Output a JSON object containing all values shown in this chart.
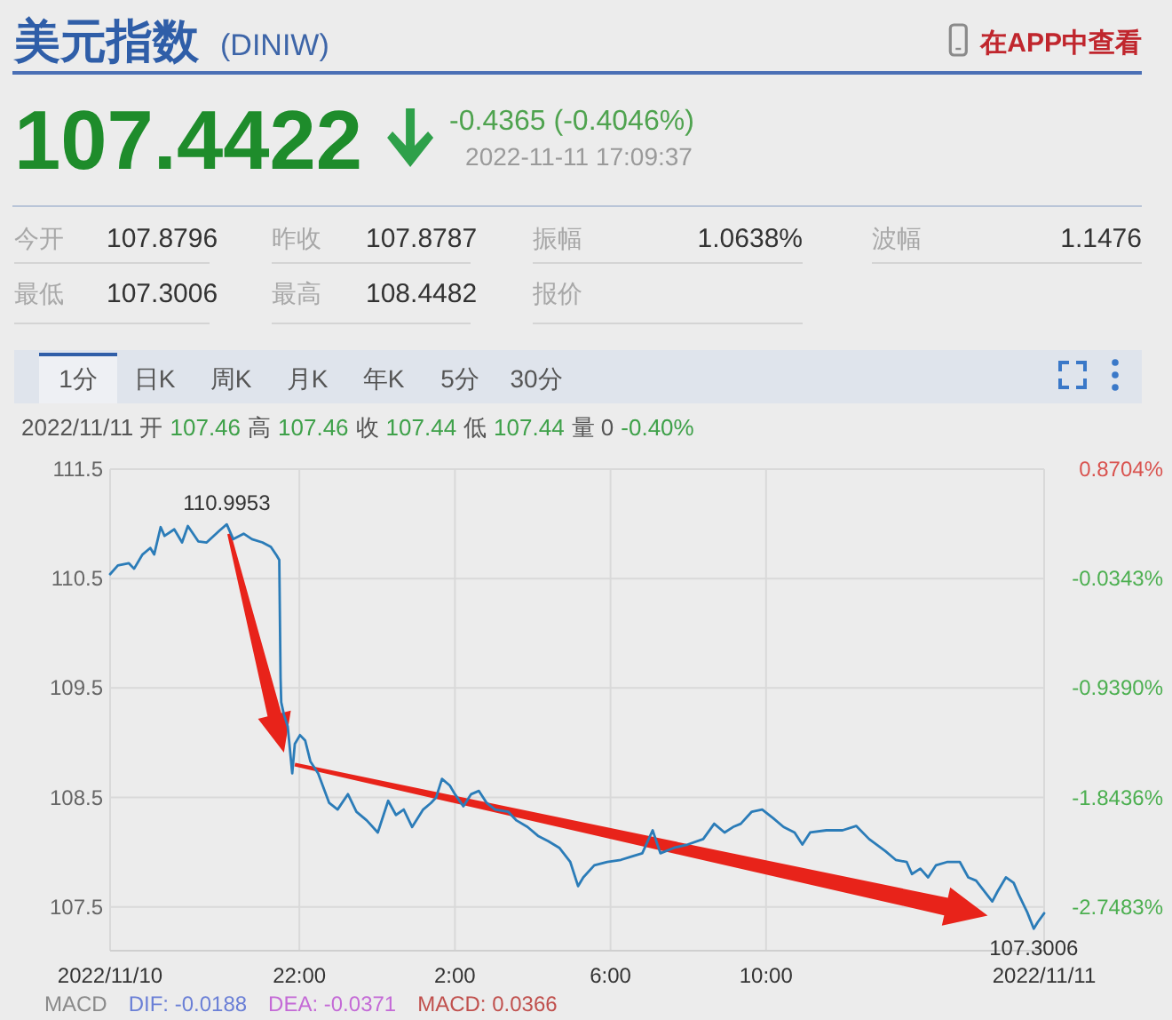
{
  "chart_data": [
    {
      "type": "other",
      "title": "美元指数",
      "subtitle": "(DINIW)",
      "annotations": [
        "在APP中查看",
        "107.4422",
        "-0.4365 (-0.4046%)",
        "2022-11-11 17:09:37",
        "今开",
        "107.8796",
        "昨收",
        "107.8787",
        "振幅",
        "1.0638%",
        "波幅",
        "1.1476",
        "最低",
        "107.3006",
        "最高",
        "108.4482",
        "报价",
        "1分",
        "日K",
        "周K",
        "月K",
        "年K",
        "5分",
        "30分"
      ]
    },
    {
      "type": "line",
      "color": "#2b7cb8",
      "x": [
        "2022-11-10T17:08",
        "2022-11-10T17:20",
        "2022-11-10T17:37",
        "2022-11-10T17:45",
        "2022-11-10T17:58",
        "2022-11-10T18:10",
        "2022-11-10T18:16",
        "2022-11-10T18:26",
        "2022-11-10T18:32",
        "2022-11-10T18:47",
        "2022-11-10T18:59",
        "2022-11-10T19:08",
        "2022-11-10T19:24",
        "2022-11-10T19:37",
        "2022-11-10T19:57",
        "2022-11-10T20:08",
        "2022-11-10T20:18",
        "2022-11-10T20:34",
        "2022-11-10T20:47",
        "2022-11-10T21:03",
        "2022-11-10T21:16",
        "2022-11-10T21:25",
        "2022-11-10T21:29",
        "2022-11-10T21:31",
        "2022-11-10T21:32",
        "2022-11-10T21:36",
        "2022-11-10T21:42",
        "2022-11-10T21:49",
        "2022-11-10T21:53",
        "2022-11-10T22:01",
        "2022-11-10T22:09",
        "2022-11-10T22:17",
        "2022-11-10T22:29",
        "2022-11-10T22:46",
        "2022-11-10T22:59",
        "2022-11-10T23:15",
        "2022-11-10T23:28",
        "2022-11-10T23:44",
        "2022-11-11T00:01",
        "2022-11-11T00:17",
        "2022-11-11T00:29",
        "2022-11-11T00:41",
        "2022-11-11T00:54",
        "2022-11-11T01:11",
        "2022-11-11T01:23",
        "2022-11-11T01:31",
        "2022-11-11T01:40",
        "2022-11-11T01:52",
        "2022-11-11T02:00",
        "2022-11-11T02:13",
        "2022-11-11T02:25",
        "2022-11-11T02:37",
        "2022-11-11T02:49",
        "2022-11-11T03:02",
        "2022-11-11T03:22",
        "2022-11-11T03:35",
        "2022-11-11T03:52",
        "2022-11-11T04:08",
        "2022-11-11T04:24",
        "2022-11-11T04:41",
        "2022-11-11T04:58",
        "2022-11-11T05:10",
        "2022-11-11T05:18",
        "2022-11-11T05:35",
        "2022-11-11T05:55",
        "2022-11-11T06:16",
        "2022-11-11T06:32",
        "2022-11-11T06:49",
        "2022-11-11T07:05",
        "2022-11-11T07:17",
        "2022-11-11T07:38",
        "2022-11-11T07:59",
        "2022-11-11T08:23",
        "2022-11-11T08:40",
        "2022-11-11T08:56",
        "2022-11-11T09:09",
        "2022-11-11T09:21",
        "2022-11-11T09:38",
        "2022-11-11T09:54",
        "2022-11-11T10:11",
        "2022-11-11T10:27",
        "2022-11-11T10:44",
        "2022-11-11T10:56",
        "2022-11-11T11:08",
        "2022-11-11T11:33",
        "2022-11-11T11:58",
        "2022-11-11T12:19",
        "2022-11-11T12:39",
        "2022-11-11T13:04",
        "2022-11-11T13:20",
        "2022-11-11T13:37",
        "2022-11-11T13:45",
        "2022-11-11T13:58",
        "2022-11-11T14:10",
        "2022-11-11T14:22",
        "2022-11-11T14:39",
        "2022-11-11T14:59",
        "2022-11-11T15:12",
        "2022-11-11T15:24",
        "2022-11-11T15:41",
        "2022-11-11T15:49",
        "2022-11-11T15:57",
        "2022-11-11T16:10",
        "2022-11-11T16:22",
        "2022-11-11T16:30",
        "2022-11-11T16:43",
        "2022-11-11T16:53",
        "2022-11-11T16:59",
        "2022-11-11T17:09"
      ],
      "values": [
        110.54,
        110.62,
        110.64,
        110.59,
        110.72,
        110.78,
        110.72,
        110.97,
        110.89,
        110.95,
        110.83,
        110.98,
        110.84,
        110.83,
        110.94,
        110.9953,
        110.86,
        110.91,
        110.86,
        110.83,
        110.79,
        110.71,
        110.67,
        109.59,
        109.37,
        109.26,
        109.15,
        108.72,
        108.99,
        109.07,
        109.02,
        108.83,
        108.72,
        108.45,
        108.39,
        108.53,
        108.37,
        108.29,
        108.18,
        108.47,
        108.34,
        108.39,
        108.23,
        108.39,
        108.45,
        108.5,
        108.67,
        108.61,
        108.53,
        108.42,
        108.53,
        108.56,
        108.45,
        108.39,
        108.37,
        108.29,
        108.23,
        108.15,
        108.1,
        108.04,
        107.91,
        107.69,
        107.77,
        107.88,
        107.91,
        107.93,
        107.96,
        107.99,
        108.2,
        107.99,
        108.04,
        108.07,
        108.12,
        108.26,
        108.18,
        108.23,
        108.26,
        108.37,
        108.39,
        108.31,
        108.23,
        108.18,
        108.07,
        108.18,
        108.2,
        108.2,
        108.24,
        108.12,
        108.01,
        107.93,
        107.91,
        107.8,
        107.85,
        107.77,
        107.88,
        107.91,
        107.91,
        107.77,
        107.74,
        107.61,
        107.55,
        107.64,
        107.77,
        107.72,
        107.61,
        107.45,
        107.3006,
        107.36,
        107.4422
      ],
      "xlim": [
        "2022-11-10T17:08",
        "2022-11-11T17:09"
      ],
      "xticks": [
        {
          "value": "2022-11-10T17:08",
          "label": "2022/11/10"
        },
        {
          "value": "2022-11-10T22:00",
          "label": "22:00"
        },
        {
          "value": "2022-11-11T02:00",
          "label": "2:00"
        },
        {
          "value": "2022-11-11T06:00",
          "label": "6:00"
        },
        {
          "value": "2022-11-11T10:00",
          "label": "10:00"
        },
        {
          "value": "2022-11-11T17:09",
          "label": "2022/11/11"
        }
      ],
      "ylim": [
        107.1,
        111.5
      ],
      "yticks": [
        107.5,
        108.5,
        109.5,
        110.5,
        111.5
      ],
      "y2lim": [
        -3.1101,
        0.8704
      ],
      "y2ticks": [
        {
          "value": -2.7483,
          "label": "-2.7483%"
        },
        {
          "value": -1.8436,
          "label": "-1.8436%"
        },
        {
          "value": -0.939,
          "label": "-0.9390%"
        },
        {
          "value": -0.0343,
          "label": "-0.0343%"
        },
        {
          "value": 0.8704,
          "label": "0.8704%"
        }
      ],
      "grid": true,
      "annotations": [
        {
          "text": "110.9953",
          "x": "2022-11-10T20:08",
          "y": 110.9953
        },
        {
          "text": "107.3006",
          "x": "2022-11-11T16:53",
          "y": 107.3006
        },
        "2022/11/11 开",
        "107.46",
        "高",
        "107.46",
        "收",
        "107.44",
        "低",
        "107.44",
        "量 0",
        "-0.40%",
        "MACD",
        "DIF: -0.0188",
        "DEA: -0.0371",
        "MACD: 0.0366"
      ]
    }
  ]
}
